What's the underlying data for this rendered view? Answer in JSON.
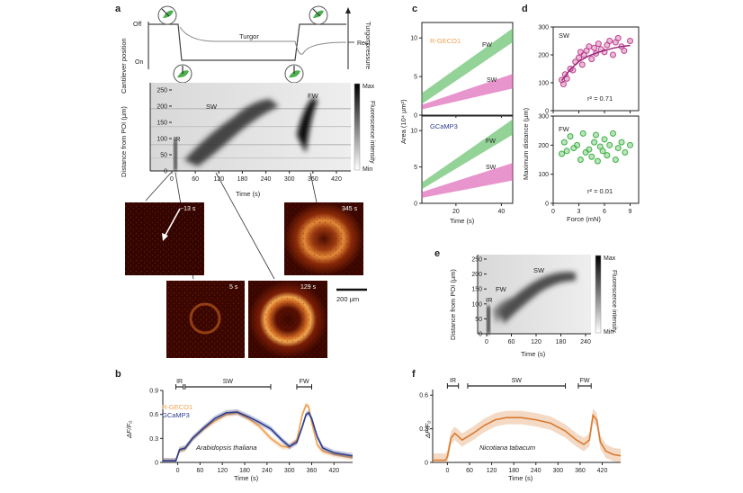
{
  "panel_a": {
    "label": "a",
    "cantilever_ylabel": "Cantilever position",
    "turgor_ylabel": "Turgor pressure",
    "off_label": "Off",
    "on_label": "On",
    "rest_label": "Rest",
    "turgor_label": "Turgor",
    "kymo_ylabel": "Distance from POI (µm)",
    "kymo_xlabel": "Time (s)",
    "kymo_yticks": [
      "0",
      "50",
      "100",
      "150",
      "200",
      "250"
    ],
    "kymo_xticks": [
      "0",
      "60",
      "120",
      "180",
      "240",
      "300",
      "360",
      "420"
    ],
    "wave_labels": {
      "ir": "IR",
      "sw": "SW",
      "fw": "FW"
    },
    "colorbar": {
      "max": "Max",
      "min": "Min",
      "label": "Fluorescence intensity"
    },
    "images": [
      {
        "time": "−13 s"
      },
      {
        "time": "5 s"
      },
      {
        "time": "129 s"
      },
      {
        "time": "345 s"
      }
    ],
    "scale_bar": "200 µm"
  },
  "panel_b": {
    "label": "b",
    "ylabel": "ΔF/F₀",
    "xlabel": "Time (s)",
    "yticks": [
      "0",
      "0.3",
      "0.6",
      "0.9"
    ],
    "xticks": [
      "0",
      "60",
      "120",
      "180",
      "240",
      "300",
      "360",
      "420"
    ],
    "legend": [
      {
        "name": "R-GECO1",
        "color": "#f0a050"
      },
      {
        "name": "GCaMP3",
        "color": "#2a3d8f"
      }
    ],
    "species": "Arabidopsis thaliana",
    "brackets": [
      "IR",
      "SW",
      "FW"
    ]
  },
  "panel_c": {
    "label": "c",
    "ylabel": "Area (10⁴ µm²)",
    "xlabel": "Time (s)",
    "yticks": [
      "0",
      "5",
      "10"
    ],
    "xticks": [
      "20",
      "40"
    ],
    "subpanels": [
      {
        "name": "R-GECO1",
        "color": "#f0a050",
        "fw": "FW",
        "sw": "SW"
      },
      {
        "name": "GCaMP3",
        "color": "#2a3d8f",
        "fw": "FW",
        "sw": "SW"
      }
    ]
  },
  "panel_d": {
    "label": "d",
    "ylabel": "Maximum distance (µm)",
    "xlabel": "Force (mN)",
    "yticks": [
      "0",
      "100",
      "200",
      "300"
    ],
    "xticks": [
      "0",
      "3",
      "6",
      "9"
    ],
    "sw": {
      "title": "SW",
      "r2": "r² = 0.71"
    },
    "fw": {
      "title": "FW",
      "r2": "r² = 0.01"
    }
  },
  "panel_e": {
    "label": "e",
    "ylabel": "Distance from POI (µm)",
    "xlabel": "Time (s)",
    "yticks": [
      "0",
      "50",
      "100",
      "150",
      "200",
      "250"
    ],
    "xticks": [
      "0",
      "60",
      "120",
      "180",
      "240"
    ],
    "wave_labels": {
      "ir": "IR",
      "fw": "FW",
      "sw": "SW"
    },
    "colorbar": {
      "max": "Max",
      "min": "Min",
      "label": "Fluorescence intensity"
    }
  },
  "panel_f": {
    "label": "f",
    "ylabel": "ΔF/F₀",
    "xlabel": "Time (s)",
    "yticks": [
      "0",
      "0.3",
      "0.6"
    ],
    "xticks": [
      "0",
      "60",
      "120",
      "180",
      "240",
      "300",
      "360",
      "420"
    ],
    "species": "Nicotiana tabacum",
    "brackets": [
      "IR",
      "SW",
      "FW"
    ]
  },
  "chart_data": [
    {
      "id": "b",
      "type": "line",
      "title": "",
      "xlabel": "Time (s)",
      "ylabel": "ΔF/F₀",
      "xlim": [
        -40,
        470
      ],
      "ylim": [
        0,
        0.9
      ],
      "series": [
        {
          "name": "R-GECO1",
          "color": "#f0a050",
          "x": [
            -40,
            -5,
            5,
            20,
            40,
            70,
            100,
            130,
            160,
            190,
            220,
            250,
            280,
            300,
            320,
            335,
            345,
            352,
            360,
            375,
            390,
            420,
            470
          ],
          "y": [
            0.02,
            0.02,
            0.15,
            0.17,
            0.3,
            0.42,
            0.52,
            0.6,
            0.62,
            0.55,
            0.45,
            0.3,
            0.2,
            0.19,
            0.28,
            0.6,
            0.72,
            0.7,
            0.5,
            0.22,
            0.14,
            0.1,
            0.06
          ]
        },
        {
          "name": "GCaMP3",
          "color": "#2a3d8f",
          "x": [
            -40,
            -5,
            5,
            20,
            40,
            70,
            100,
            130,
            160,
            190,
            220,
            250,
            280,
            300,
            320,
            335,
            345,
            352,
            360,
            375,
            390,
            420,
            470
          ],
          "y": [
            0.02,
            0.02,
            0.16,
            0.18,
            0.3,
            0.43,
            0.55,
            0.62,
            0.63,
            0.57,
            0.5,
            0.42,
            0.28,
            0.2,
            0.25,
            0.45,
            0.6,
            0.62,
            0.55,
            0.32,
            0.18,
            0.12,
            0.08
          ]
        }
      ]
    },
    {
      "id": "f",
      "type": "line",
      "title": "",
      "xlabel": "Time (s)",
      "ylabel": "ΔF/F₀",
      "xlim": [
        -40,
        470
      ],
      "ylim": [
        0,
        0.65
      ],
      "series": [
        {
          "name": "Nicotiana tabacum",
          "color": "#d97a30",
          "x": [
            -40,
            -5,
            0,
            10,
            20,
            40,
            70,
            100,
            130,
            160,
            200,
            240,
            280,
            320,
            350,
            370,
            385,
            395,
            405,
            415,
            430,
            450,
            470
          ],
          "y": [
            0.02,
            0.02,
            0.05,
            0.22,
            0.26,
            0.2,
            0.26,
            0.33,
            0.38,
            0.4,
            0.4,
            0.38,
            0.35,
            0.28,
            0.2,
            0.16,
            0.2,
            0.42,
            0.38,
            0.18,
            0.1,
            0.07,
            0.06
          ]
        }
      ]
    },
    {
      "id": "d-sw",
      "type": "scatter",
      "title": "SW",
      "xlabel": "Force (mN)",
      "ylabel": "Maximum distance (µm)",
      "xlim": [
        0,
        10
      ],
      "ylim": [
        0,
        300
      ],
      "x": [
        1,
        1.2,
        1.4,
        1.6,
        2,
        2.3,
        2.6,
        3,
        3.2,
        3.4,
        3.6,
        3.9,
        4.2,
        4.5,
        4.8,
        5,
        5.3,
        5.6,
        6,
        6.3,
        6.6,
        7,
        7.3,
        7.6,
        8,
        8.3,
        9
      ],
      "y": [
        110,
        95,
        130,
        115,
        150,
        145,
        175,
        190,
        210,
        165,
        200,
        215,
        230,
        185,
        225,
        205,
        240,
        220,
        210,
        235,
        250,
        200,
        245,
        260,
        230,
        215,
        250
      ],
      "fit": {
        "x": [
          1,
          2,
          3,
          4,
          5,
          6,
          7,
          8,
          9
        ],
        "y": [
          108,
          148,
          176,
          194,
          206,
          216,
          224,
          230,
          234
        ]
      },
      "annotation": "r² = 0.71"
    },
    {
      "id": "d-fw",
      "type": "scatter",
      "title": "FW",
      "xlabel": "Force (mN)",
      "ylabel": "Maximum distance (µm)",
      "xlim": [
        0,
        10
      ],
      "ylim": [
        0,
        300
      ],
      "x": [
        1,
        1.3,
        1.6,
        2,
        2.4,
        2.8,
        3.2,
        3.5,
        3.8,
        4.2,
        4.5,
        4.8,
        5,
        5.2,
        5.5,
        5.8,
        6,
        6.3,
        6.6,
        7,
        7.3,
        7.6,
        8,
        8.4,
        9
      ],
      "y": [
        170,
        210,
        180,
        230,
        190,
        200,
        150,
        240,
        175,
        185,
        160,
        210,
        235,
        145,
        195,
        180,
        220,
        165,
        200,
        240,
        150,
        190,
        210,
        175,
        200
      ],
      "annotation": "r² = 0.01"
    },
    {
      "id": "c-rgeco",
      "type": "area",
      "title": "R-GECO1",
      "xlabel": "Time (s)",
      "ylabel": "Area (10⁴ µm²)",
      "xlim": [
        5,
        45
      ],
      "ylim": [
        0,
        12
      ],
      "series": [
        {
          "name": "FW",
          "color": "#3cb043",
          "x": [
            5,
            45
          ],
          "lower": [
            1.5,
            9.5
          ],
          "upper": [
            2.8,
            11.2
          ]
        },
        {
          "name": "SW",
          "color": "#d63fa6",
          "x": [
            5,
            45
          ],
          "lower": [
            0.8,
            3.5
          ],
          "upper": [
            1.3,
            5.3
          ]
        }
      ]
    },
    {
      "id": "c-gcamp",
      "type": "area",
      "title": "GCaMP3",
      "xlabel": "Time (s)",
      "ylabel": "Area (10⁴ µm²)",
      "xlim": [
        5,
        45
      ],
      "ylim": [
        0,
        12
      ],
      "series": [
        {
          "name": "FW",
          "color": "#3cb043",
          "x": [
            5,
            45
          ],
          "lower": [
            2.0,
            9.5
          ],
          "upper": [
            2.8,
            11.5
          ]
        },
        {
          "name": "SW",
          "color": "#d63fa6",
          "x": [
            5,
            45
          ],
          "lower": [
            0.8,
            3.2
          ],
          "upper": [
            1.5,
            5.5
          ]
        }
      ]
    }
  ]
}
